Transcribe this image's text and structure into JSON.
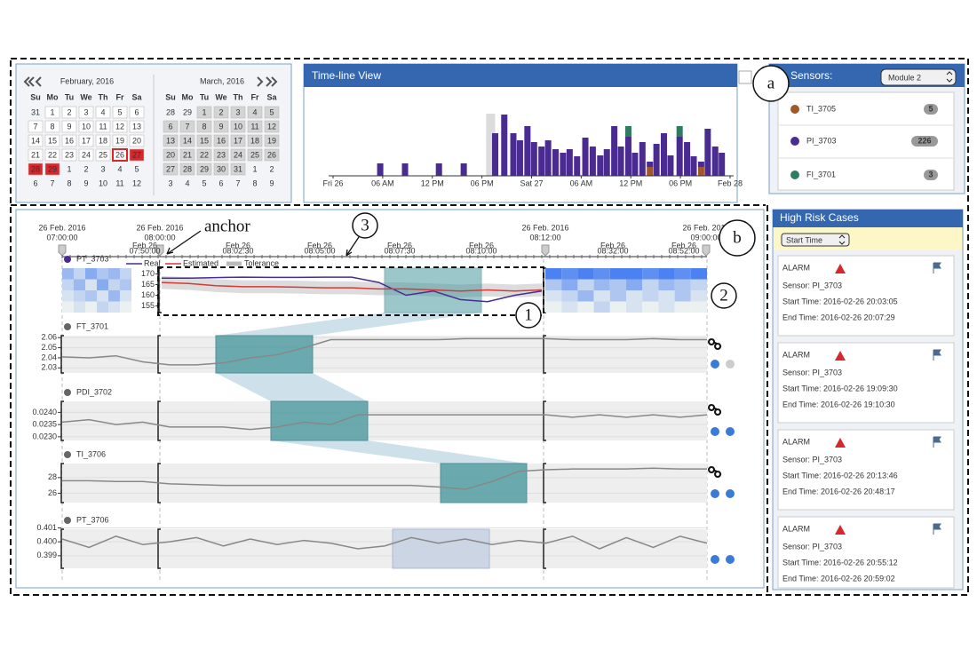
{
  "calendar": {
    "months": [
      {
        "title": "February, 2016",
        "weekdays": [
          "Su",
          "Mo",
          "Tu",
          "We",
          "Th",
          "Fr",
          "Sa"
        ],
        "weeks": [
          [
            31,
            1,
            2,
            3,
            4,
            5,
            6
          ],
          [
            7,
            8,
            9,
            10,
            11,
            12,
            13
          ],
          [
            14,
            15,
            16,
            17,
            18,
            19,
            20
          ],
          [
            21,
            22,
            23,
            24,
            25,
            26,
            27
          ],
          [
            28,
            29,
            1,
            2,
            3,
            4,
            5
          ],
          [
            6,
            7,
            8,
            9,
            10,
            11,
            12
          ]
        ],
        "selected": [
          26
        ],
        "alarm": [
          27,
          28,
          29
        ]
      },
      {
        "title": "March, 2016",
        "weekdays": [
          "Su",
          "Mo",
          "Tu",
          "We",
          "Th",
          "Fr",
          "Sa"
        ],
        "weeks": [
          [
            28,
            29,
            1,
            2,
            3,
            4,
            5
          ],
          [
            6,
            7,
            8,
            9,
            10,
            11,
            12
          ],
          [
            13,
            14,
            15,
            16,
            17,
            18,
            19
          ],
          [
            20,
            21,
            22,
            23,
            24,
            25,
            26
          ],
          [
            27,
            28,
            29,
            30,
            31,
            1,
            2
          ],
          [
            3,
            4,
            5,
            6,
            7,
            8,
            9
          ]
        ]
      }
    ]
  },
  "timeline": {
    "title": "Time-line View",
    "xlim": [
      0,
      48
    ],
    "xticks": [
      {
        "value": 0,
        "label": "Fri 26"
      },
      {
        "value": 6,
        "label": "06 AM"
      },
      {
        "value": 12,
        "label": "12 PM"
      },
      {
        "value": 18,
        "label": "06 PM"
      },
      {
        "value": 24,
        "label": "Sat 27"
      },
      {
        "value": 30,
        "label": "06 AM"
      },
      {
        "value": 36,
        "label": "12 PM"
      },
      {
        "value": 42,
        "label": "06 PM"
      },
      {
        "value": 48,
        "label": "Feb 28"
      }
    ],
    "ylim": [
      0,
      70
    ],
    "selection": [
      18.5,
      19.6
    ],
    "x": [
      5.7,
      8.7,
      12.8,
      15.8,
      19.6,
      20.7,
      21.8,
      22.6,
      23.5,
      24.3,
      25.2,
      26.0,
      26.9,
      27.8,
      28.6,
      29.5,
      30.5,
      31.4,
      32.3,
      33.1,
      34.0,
      34.8,
      35.7,
      36.5,
      37.4,
      38.3,
      39.1,
      40.0,
      40.8,
      41.9,
      42.8,
      43.6,
      44.5,
      45.3,
      46.2,
      47.0
    ],
    "series": [
      {
        "name": "TI_3705",
        "color": "#a0582a",
        "values": [
          0,
          0,
          0,
          0,
          0,
          0,
          0,
          0,
          0,
          0,
          0,
          0,
          0,
          0,
          0,
          0,
          0,
          0,
          0,
          0,
          0,
          0,
          0,
          0,
          0,
          10,
          0,
          0,
          0,
          0,
          0,
          0,
          10,
          0,
          0,
          0
        ]
      },
      {
        "name": "PI_3703",
        "color": "#4a2c91",
        "values": [
          14,
          14,
          14,
          14,
          48,
          69,
          48,
          40,
          56,
          38,
          33,
          40,
          30,
          26,
          30,
          22,
          43,
          33,
          23,
          30,
          56,
          33,
          44,
          26,
          38,
          6,
          36,
          48,
          23,
          44,
          38,
          22,
          6,
          53,
          33,
          26
        ]
      },
      {
        "name": "FI_3701",
        "color": "#2e7d5e",
        "values": [
          0,
          0,
          0,
          0,
          0,
          0,
          0,
          0,
          0,
          0,
          0,
          0,
          0,
          0,
          0,
          0,
          0,
          0,
          0,
          0,
          0,
          0,
          12,
          0,
          0,
          0,
          0,
          0,
          0,
          12,
          0,
          0,
          0,
          0,
          0,
          0
        ]
      }
    ]
  },
  "sensors": {
    "title": "Sensors:",
    "module": "Module 2",
    "items": [
      {
        "name": "TI_3705",
        "color": "#a0582a",
        "count": 5
      },
      {
        "name": "PI_3703",
        "color": "#4a2c91",
        "count": 226
      },
      {
        "name": "FI_3701",
        "color": "#2e7d5e",
        "count": 3
      }
    ]
  },
  "cases": {
    "title": "High Risk Cases",
    "sort": "Start Time",
    "items": [
      {
        "level": "ALARM",
        "sensor": "Sensor: PI_3703",
        "start": "Start Time: 2016-02-26 20:03:05",
        "end": "End Time: 2016-02-26 20:07:29"
      },
      {
        "level": "ALARM",
        "sensor": "Sensor: PI_3703",
        "start": "Start Time: 2016-02-26 19:09:30",
        "end": "End Time: 2016-02-26 19:10:30"
      },
      {
        "level": "ALARM",
        "sensor": "Sensor: PI_3703",
        "start": "Start Time: 2016-02-26 20:13:46",
        "end": "End Time: 2016-02-26 20:48:17"
      },
      {
        "level": "ALARM",
        "sensor": "Sensor: PI_3703",
        "start": "Start Time: 2016-02-26 20:55:12",
        "end": "End Time: 2016-02-26 20:59:02"
      }
    ]
  },
  "detail": {
    "major_ticks": [
      {
        "date": "26 Feb. 2016",
        "time": "07:00:00"
      },
      {
        "date": "26 Feb. 2016",
        "time": "08:00:00"
      },
      {
        "date": "26 Feb. 2016",
        "time": "08:12:00"
      },
      {
        "date": "26 Feb. 2016",
        "time": "09:00:00"
      }
    ],
    "minor_ticks": [
      {
        "date": "Feb 26",
        "time": "07:50:00"
      },
      {
        "date": "Feb 26",
        "time": "08:02:30"
      },
      {
        "date": "Feb 26",
        "time": "08:05:00"
      },
      {
        "date": "Feb 26",
        "time": "08:07:30"
      },
      {
        "date": "Feb 26",
        "time": "08:10:00"
      },
      {
        "date": "Feb 26",
        "time": "08:32:00"
      },
      {
        "date": "Feb 26",
        "time": "08:52:00"
      }
    ],
    "rows": [
      {
        "name": "PT_3703",
        "color": "#4a2c91",
        "ylim": [
          151.9,
          172.7
        ],
        "yticks": [
          170,
          165,
          160,
          155
        ],
        "series": [
          {
            "name": "Real",
            "color": "#4a2c91",
            "values": [
              168,
              168,
              168.3,
              168.5,
              168.4,
              168.4,
              168.5,
              168.5,
              166,
              160,
              162,
              158,
              157,
              160,
              162
            ]
          },
          {
            "name": "Estimated",
            "color": "#d43a3a",
            "values": [
              166,
              165.5,
              164.5,
              164,
              164,
              163.8,
              163.5,
              163.5,
              163,
              163,
              162.5,
              162,
              162.5,
              162,
              162.5
            ]
          }
        ],
        "tolerance": {
          "name": "Tolerance",
          "value": 3
        },
        "heatmap_left": [
          [
            0.5,
            0.3,
            0.6,
            0.4,
            0.5,
            0.3
          ],
          [
            0.3,
            0.5,
            0.2,
            0.6,
            0.3,
            0.4
          ],
          [
            0.2,
            0.3,
            0.4,
            0.2,
            0.5,
            0.2
          ],
          [
            0.1,
            0.2,
            0.1,
            0.3,
            0.2,
            0.1
          ]
        ],
        "heatmap_right": [
          [
            0.9,
            0.8,
            0.9,
            0.8,
            0.9,
            0.9,
            0.8,
            0.9,
            0.8,
            0.9
          ],
          [
            0.4,
            0.6,
            0.3,
            0.5,
            0.4,
            0.6,
            0.3,
            0.5,
            0.4,
            0.3
          ],
          [
            0.2,
            0.3,
            0.5,
            0.2,
            0.4,
            0.2,
            0.3,
            0.2,
            0.4,
            0.2
          ],
          [
            0.1,
            0.2,
            0.1,
            0.3,
            0.1,
            0.2,
            0.1,
            0.2,
            0.1,
            0.1
          ]
        ]
      },
      {
        "name": "FT_3701",
        "color": "#666666",
        "ylim": [
          2.025,
          2.062
        ],
        "yticks": [
          2.06,
          2.05,
          2.04,
          2.03
        ],
        "values": [
          2.041,
          2.04,
          2.042,
          2.036,
          2.033,
          2.033,
          2.035,
          2.04,
          2.043,
          2.05,
          2.058,
          2.058,
          2.058,
          2.058,
          2.058,
          2.059,
          2.059,
          2.059,
          2.059,
          2.058,
          2.058,
          2.058,
          2.059,
          2.058,
          2.058
        ]
      },
      {
        "name": "PDI_3702",
        "color": "#666666",
        "ylim": [
          0.02285,
          0.02445
        ],
        "yticks": [
          {
            "value": 0.024,
            "label": "0.0240"
          },
          {
            "value": 0.0235,
            "label": "0.0235"
          },
          {
            "value": 0.023,
            "label": "0.0230"
          }
        ],
        "values": [
          0.0236,
          0.0237,
          0.0235,
          0.0236,
          0.0234,
          0.0234,
          0.0234,
          0.0233,
          0.0234,
          0.0236,
          0.0235,
          0.0239,
          0.0239,
          0.0239,
          0.0239,
          0.0239,
          0.0239,
          0.0239,
          0.0239,
          0.0238,
          0.0239,
          0.0238,
          0.0239,
          0.0238,
          0.0239
        ]
      },
      {
        "name": "TI_3706",
        "color": "#666666",
        "ylim": [
          24.8,
          29.8
        ],
        "yticks": [
          28,
          26
        ],
        "values": [
          27.6,
          27.6,
          27.5,
          27.5,
          27.2,
          27.1,
          27.0,
          27.0,
          27.0,
          27.0,
          27.0,
          27.0,
          27.0,
          27.0,
          26.8,
          26.5,
          27.5,
          28.8,
          29.0,
          29.1,
          29.1,
          29.1,
          29.2,
          29.1,
          29.1
        ]
      },
      {
        "name": "PT_3706",
        "color": "#666666",
        "ylim": [
          0.3981,
          0.4009
        ],
        "yticks": [
          0.401,
          {
            "value": 0.4,
            "label": "0.400"
          },
          0.399
        ],
        "values": [
          0.4002,
          0.3996,
          0.4004,
          0.3998,
          0.4,
          0.4003,
          0.3997,
          0.4002,
          0.3998,
          0.4001,
          0.3999,
          0.3995,
          0.3997,
          0.4003,
          0.3999,
          0.4002,
          0.3998,
          0.4001,
          0.3999,
          0.4004,
          0.3995,
          0.4003,
          0.3996,
          0.4004,
          0.3999
        ]
      }
    ]
  },
  "annotations": {
    "anchor": "anchor",
    "markers": [
      "a",
      "b",
      "1",
      "2",
      "3"
    ]
  }
}
